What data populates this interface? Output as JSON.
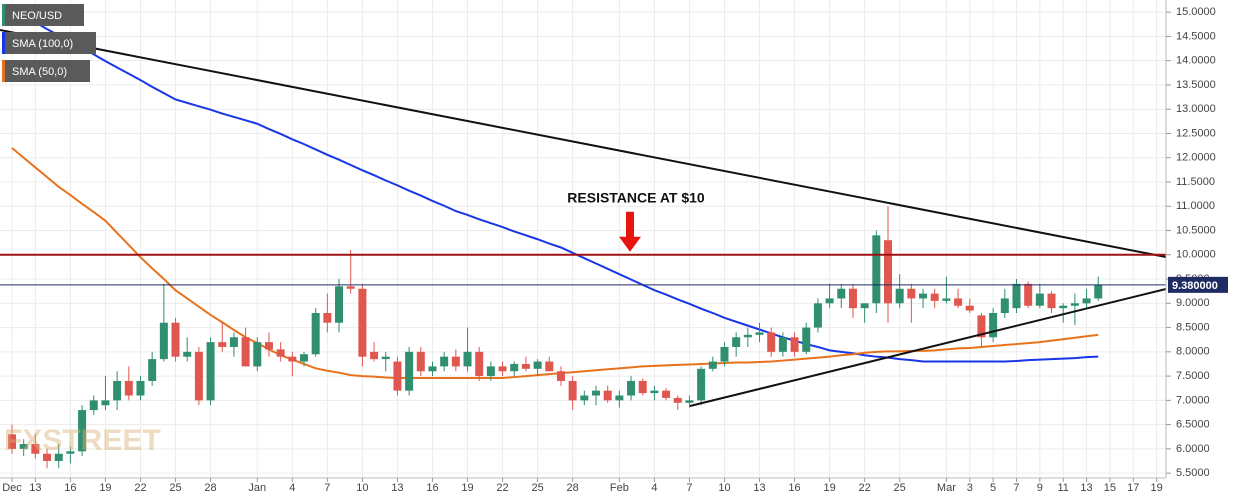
{
  "chart_data": {
    "type": "candlestick",
    "categories": [
      "Dec",
      null,
      "13",
      null,
      null,
      "16",
      null,
      null,
      "19",
      null,
      null,
      "22",
      null,
      null,
      "25",
      null,
      null,
      "28",
      null,
      null,
      null,
      "Jan",
      null,
      null,
      "4",
      null,
      null,
      "7",
      null,
      null,
      "10",
      null,
      null,
      "13",
      null,
      null,
      "16",
      null,
      null,
      "19",
      null,
      null,
      "22",
      null,
      null,
      "25",
      null,
      null,
      "28",
      null,
      null,
      null,
      "Feb",
      null,
      null,
      "4",
      null,
      null,
      "7",
      null,
      null,
      "10",
      null,
      null,
      "13",
      null,
      null,
      "16",
      null,
      null,
      "19",
      null,
      null,
      "22",
      null,
      null,
      "25",
      null,
      null,
      null,
      "Mar",
      null,
      "3",
      null,
      "5",
      null,
      "7",
      null,
      "9",
      null,
      "11",
      null,
      "13",
      null,
      "15",
      null,
      "17",
      null,
      "19"
    ],
    "series": [
      {
        "name": "NEO/USD",
        "type": "candlestick",
        "color": "#2f8f6f",
        "down_color": "#e0574f",
        "open": [
          6.3,
          6.0,
          6.1,
          5.9,
          5.75,
          5.9,
          5.95,
          6.8,
          6.9,
          7.0,
          7.4,
          7.1,
          7.4,
          7.85,
          8.6,
          7.9,
          8.0,
          7.0,
          8.2,
          8.1,
          8.3,
          7.7,
          8.2,
          8.05,
          7.9,
          7.8,
          7.95,
          8.8,
          8.6,
          9.35,
          9.3,
          8.0,
          7.85,
          7.8,
          7.2,
          8.0,
          7.6,
          7.7,
          7.9,
          7.7,
          8.0,
          7.5,
          7.7,
          7.6,
          7.75,
          7.65,
          7.8,
          7.6,
          7.4,
          7.0,
          7.1,
          7.2,
          7.0,
          7.1,
          7.4,
          7.15,
          7.2,
          7.05,
          6.95,
          7.0,
          7.65,
          7.8,
          8.1,
          8.3,
          8.35,
          8.4,
          8.0,
          8.3,
          8.0,
          8.5,
          9.0,
          9.1,
          9.3,
          8.9,
          9.0,
          10.3,
          9.0,
          9.3,
          9.1,
          9.2,
          9.05,
          9.1,
          8.95,
          8.75,
          8.3,
          8.8,
          8.9,
          9.4,
          8.95,
          9.2,
          8.9,
          8.95,
          9.0,
          9.1,
          null,
          null,
          null,
          null,
          null
        ],
        "high": [
          6.5,
          6.2,
          6.3,
          6.0,
          6.1,
          6.05,
          6.9,
          7.1,
          7.5,
          7.6,
          7.7,
          7.5,
          8.0,
          9.4,
          8.7,
          8.3,
          8.1,
          8.3,
          8.6,
          8.4,
          8.5,
          8.3,
          8.4,
          8.2,
          8.0,
          8.0,
          8.9,
          9.2,
          9.5,
          10.1,
          9.4,
          8.2,
          8.0,
          7.9,
          8.1,
          8.1,
          7.8,
          8.0,
          8.05,
          8.5,
          8.1,
          7.8,
          7.8,
          7.8,
          7.9,
          7.85,
          7.9,
          7.7,
          7.5,
          7.2,
          7.3,
          7.3,
          7.2,
          7.5,
          7.45,
          7.3,
          7.25,
          7.1,
          7.1,
          7.7,
          7.9,
          8.2,
          8.4,
          8.5,
          8.6,
          8.5,
          8.4,
          8.4,
          8.6,
          9.1,
          9.4,
          9.4,
          9.4,
          9.0,
          10.5,
          11.0,
          9.6,
          9.4,
          9.3,
          9.3,
          9.55,
          9.3,
          9.1,
          8.8,
          8.9,
          9.3,
          9.5,
          9.45,
          9.4,
          9.25,
          9.0,
          9.2,
          9.3,
          9.55,
          null,
          null,
          null,
          null,
          null
        ],
        "low": [
          5.9,
          5.85,
          5.8,
          5.6,
          5.6,
          5.7,
          5.85,
          6.7,
          6.8,
          6.8,
          7.0,
          7.0,
          7.3,
          7.8,
          7.8,
          7.8,
          6.9,
          6.9,
          8.0,
          7.9,
          7.7,
          7.6,
          7.9,
          7.8,
          7.5,
          7.7,
          7.9,
          8.4,
          8.4,
          9.2,
          7.7,
          7.8,
          7.6,
          7.1,
          7.1,
          7.5,
          7.5,
          7.6,
          7.6,
          7.6,
          7.4,
          7.4,
          7.5,
          7.5,
          7.6,
          7.5,
          7.6,
          7.3,
          6.8,
          6.9,
          6.9,
          6.95,
          6.85,
          7.0,
          7.1,
          7.0,
          7.0,
          6.8,
          6.85,
          6.9,
          7.6,
          7.7,
          7.9,
          8.1,
          8.2,
          7.9,
          7.9,
          7.9,
          7.95,
          8.4,
          8.9,
          8.9,
          8.7,
          8.6,
          8.8,
          8.6,
          8.9,
          8.6,
          8.9,
          8.9,
          9.0,
          8.9,
          8.8,
          8.1,
          8.2,
          8.7,
          8.8,
          8.9,
          8.9,
          8.8,
          8.6,
          8.55,
          8.9,
          9.05,
          null,
          null,
          null,
          null,
          null
        ],
        "close": [
          6.0,
          6.1,
          5.9,
          5.75,
          5.9,
          5.95,
          6.8,
          7.0,
          7.0,
          7.4,
          7.1,
          7.4,
          7.85,
          8.6,
          7.9,
          8.0,
          7.0,
          8.2,
          8.1,
          8.3,
          7.7,
          8.2,
          8.05,
          7.9,
          7.8,
          7.95,
          8.8,
          8.6,
          9.35,
          9.3,
          7.9,
          7.85,
          7.9,
          7.2,
          8.0,
          7.6,
          7.7,
          7.9,
          7.7,
          8.0,
          7.5,
          7.7,
          7.6,
          7.75,
          7.65,
          7.8,
          7.6,
          7.4,
          7.0,
          7.1,
          7.2,
          7.0,
          7.1,
          7.4,
          7.15,
          7.2,
          7.05,
          6.95,
          7.0,
          7.65,
          7.8,
          8.1,
          8.3,
          8.35,
          8.4,
          8.0,
          8.3,
          8.0,
          8.5,
          9.0,
          9.1,
          9.3,
          8.9,
          9.0,
          10.4,
          9.0,
          9.3,
          9.1,
          9.2,
          9.05,
          9.1,
          8.95,
          8.85,
          8.3,
          8.8,
          9.1,
          9.4,
          8.95,
          9.2,
          8.9,
          8.95,
          9.0,
          9.1,
          9.38,
          null,
          null,
          null,
          null,
          null
        ]
      },
      {
        "name": "SMA (100,0)",
        "type": "line",
        "color": "#1836e6",
        "values": [
          15.05,
          14.92,
          14.79,
          14.65,
          14.52,
          14.39,
          14.26,
          14.13,
          13.99,
          13.86,
          13.73,
          13.6,
          13.46,
          13.33,
          13.2,
          13.13,
          13.06,
          12.99,
          12.91,
          12.84,
          12.77,
          12.7,
          12.59,
          12.49,
          12.38,
          12.28,
          12.17,
          12.06,
          11.96,
          11.85,
          11.74,
          11.64,
          11.53,
          11.43,
          11.32,
          11.22,
          11.11,
          11.01,
          10.9,
          10.82,
          10.73,
          10.65,
          10.57,
          10.48,
          10.4,
          10.32,
          10.23,
          10.15,
          10.04,
          9.93,
          9.82,
          9.71,
          9.6,
          9.49,
          9.38,
          9.27,
          9.18,
          9.08,
          8.99,
          8.89,
          8.8,
          8.7,
          8.62,
          8.54,
          8.46,
          8.38,
          8.3,
          8.23,
          8.16,
          8.1,
          8.03,
          8.0,
          7.97,
          7.93,
          7.9,
          7.88,
          7.85,
          7.83,
          7.8,
          7.8,
          7.8,
          7.8,
          7.8,
          7.8,
          7.8,
          7.8,
          7.81,
          7.83,
          7.84,
          7.85,
          7.86,
          7.87,
          7.89,
          7.9,
          null,
          null,
          null,
          null,
          null
        ]
      },
      {
        "name": "SMA (50,0)",
        "type": "line",
        "color": "#e8721c",
        "values": [
          12.2,
          12.0,
          11.8,
          11.6,
          11.4,
          11.23,
          11.05,
          10.88,
          10.7,
          10.45,
          10.2,
          9.95,
          9.72,
          9.5,
          9.27,
          9.1,
          8.93,
          8.76,
          8.61,
          8.45,
          8.3,
          8.18,
          8.05,
          7.93,
          7.84,
          7.75,
          7.66,
          7.61,
          7.57,
          7.52,
          7.5,
          7.49,
          7.47,
          7.46,
          7.46,
          7.46,
          7.46,
          7.46,
          7.46,
          7.46,
          7.46,
          7.46,
          7.46,
          7.48,
          7.5,
          7.52,
          7.54,
          7.56,
          7.58,
          7.6,
          7.62,
          7.64,
          7.66,
          7.68,
          7.7,
          7.71,
          7.72,
          7.73,
          7.74,
          7.75,
          7.76,
          7.77,
          7.78,
          7.78,
          7.79,
          7.8,
          7.82,
          7.84,
          7.86,
          7.88,
          7.9,
          7.93,
          7.95,
          7.98,
          8.0,
          8.01,
          8.01,
          8.02,
          8.02,
          8.03,
          8.05,
          8.07,
          8.08,
          8.1,
          8.12,
          8.14,
          8.16,
          8.18,
          8.2,
          8.23,
          8.26,
          8.29,
          8.32,
          8.35,
          null,
          null,
          null,
          null,
          null
        ]
      }
    ],
    "annotations": [
      {
        "text": "RESISTANCE AT $10",
        "value": 10,
        "color": "#a01010"
      }
    ],
    "last_price": {
      "value": 9.38,
      "label": "9.380000",
      "color": "#1f2b63"
    },
    "watermark": "FXSTREET",
    "ylim": [
      5.4,
      15.25
    ],
    "yticks": [
      {
        "value": 5.5,
        "label": "5.5000"
      },
      {
        "value": 6,
        "label": "6.0000"
      },
      {
        "value": 6.5,
        "label": "6.5000"
      },
      {
        "value": 7,
        "label": "7.0000"
      },
      {
        "value": 7.5,
        "label": "7.5000"
      },
      {
        "value": 8,
        "label": "8.0000"
      },
      {
        "value": 8.5,
        "label": "8.5000"
      },
      {
        "value": 9,
        "label": "9.0000"
      },
      {
        "value": 9.5,
        "label": "9.5000"
      },
      {
        "value": 10,
        "label": "10.0000"
      },
      {
        "value": 10.5,
        "label": "10.5000"
      },
      {
        "value": 11,
        "label": "11.0000"
      },
      {
        "value": 11.5,
        "label": "11.5000"
      },
      {
        "value": 12,
        "label": "12.0000"
      },
      {
        "value": 12.5,
        "label": "12.5000"
      },
      {
        "value": 13,
        "label": "13.0000"
      },
      {
        "value": 13.5,
        "label": "13.5000"
      },
      {
        "value": 14,
        "label": "14.0000"
      },
      {
        "value": 14.5,
        "label": "14.5000"
      },
      {
        "value": 15,
        "label": "15.0000"
      }
    ],
    "grid": true
  }
}
